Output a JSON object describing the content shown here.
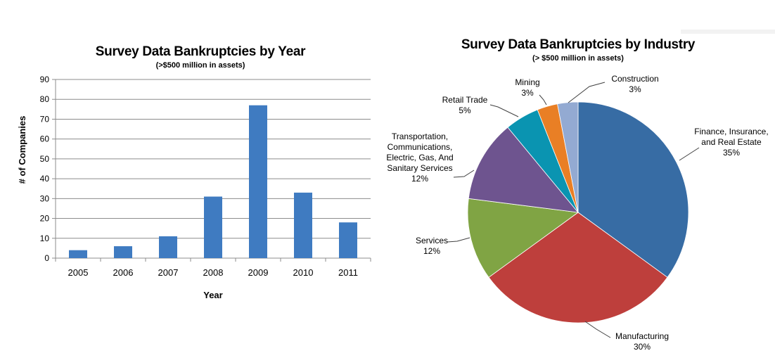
{
  "chart_data": [
    {
      "type": "bar",
      "title": "Survey Data Bankruptcies by Year",
      "subtitle": "(>$500 million in assets)",
      "xlabel": "Year",
      "ylabel": "# of Companies",
      "categories": [
        "2005",
        "2006",
        "2007",
        "2008",
        "2009",
        "2010",
        "2011"
      ],
      "values": [
        4,
        6,
        11,
        31,
        77,
        33,
        18
      ],
      "ylim": [
        0,
        90
      ],
      "yticks": [
        "0",
        "10",
        "20",
        "30",
        "40",
        "50",
        "60",
        "70",
        "80",
        "90"
      ],
      "grid": true,
      "color": "#3f7bc1"
    },
    {
      "type": "pie",
      "title": "Survey Data Bankruptcies by Industry",
      "subtitle": "(> $500 million in assets)",
      "slices": [
        {
          "label": [
            "Finance, Insurance,",
            "and Real Estate"
          ],
          "percent_label": "35%",
          "value": 35,
          "color": "#376ca4"
        },
        {
          "label": [
            "Manufacturing"
          ],
          "percent_label": "30%",
          "value": 30,
          "color": "#be3f3c"
        },
        {
          "label": [
            "Services"
          ],
          "percent_label": "12%",
          "value": 12,
          "color": "#80a444"
        },
        {
          "label": [
            "Transportation,",
            "Communications,",
            "Electric, Gas, And",
            "Sanitary Services"
          ],
          "percent_label": "12%",
          "value": 12,
          "color": "#6e548f"
        },
        {
          "label": [
            "Retail Trade"
          ],
          "percent_label": "5%",
          "value": 5,
          "color": "#0a94b1"
        },
        {
          "label": [
            "Mining"
          ],
          "percent_label": "3%",
          "value": 3,
          "color": "#e97f25"
        },
        {
          "label": [
            "Construction"
          ],
          "percent_label": "3%",
          "value": 3,
          "color": "#93aad2"
        }
      ]
    }
  ]
}
